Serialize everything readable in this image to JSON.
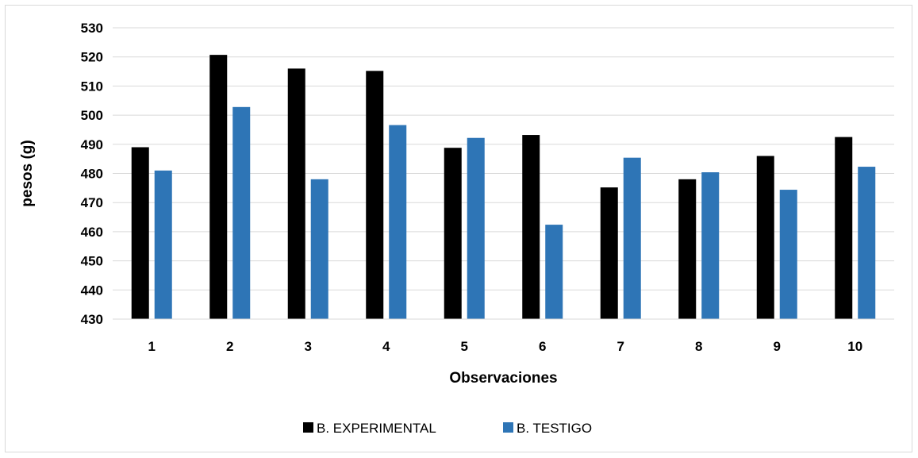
{
  "chart_data": {
    "type": "bar",
    "title": "",
    "xlabel": "Observaciones",
    "ylabel": "pesos (g)",
    "categories": [
      "1",
      "2",
      "3",
      "4",
      "5",
      "6",
      "7",
      "8",
      "9",
      "10"
    ],
    "ylim": [
      430,
      530
    ],
    "yticks": [
      430,
      440,
      450,
      460,
      470,
      480,
      490,
      500,
      510,
      520,
      530
    ],
    "grid": true,
    "legend_position": "bottom",
    "series": [
      {
        "name": "B. EXPERIMENTAL",
        "color": "#000000",
        "values": [
          489,
          520.7,
          516,
          515.2,
          488.8,
          493.2,
          475.2,
          478,
          486,
          492.5
        ]
      },
      {
        "name": "B. TESTIGO",
        "color": "#2e75b6",
        "values": [
          481,
          502.8,
          478,
          496.6,
          492.2,
          462.4,
          485.4,
          480.4,
          474.4,
          482.3
        ]
      }
    ]
  }
}
